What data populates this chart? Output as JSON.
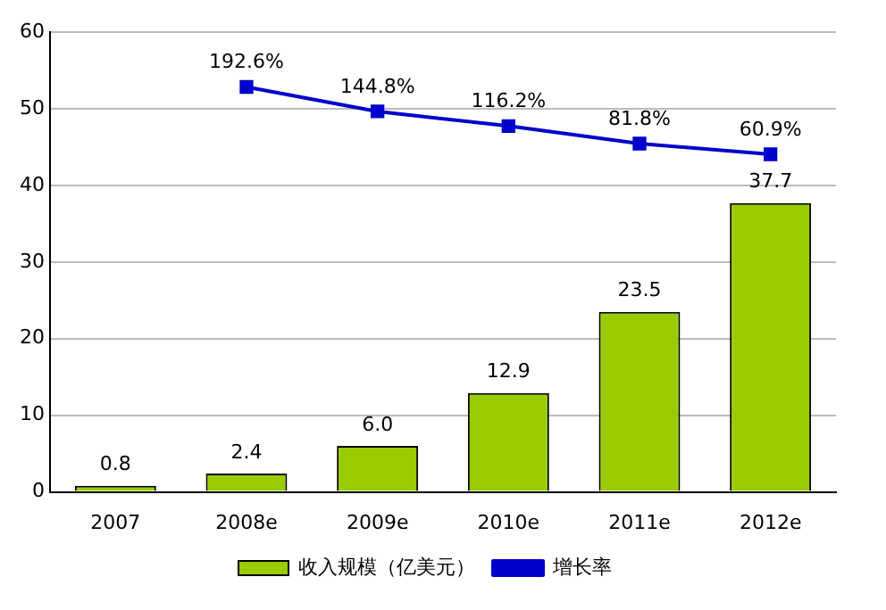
{
  "chart_data": {
    "type": "bar",
    "categories": [
      "2007",
      "2008e",
      "2009e",
      "2010e",
      "2011e",
      "2012e"
    ],
    "series": [
      {
        "name": "收入规模（亿美元）",
        "color": "#99cc00",
        "values": [
          0.8,
          2.4,
          6.0,
          12.9,
          23.5,
          37.7
        ],
        "value_labels": [
          "0.8",
          "2.4",
          "6.0",
          "12.9",
          "23.5",
          "37.7"
        ]
      },
      {
        "name": "增长率",
        "type": "line",
        "axis": "y2",
        "color": "#0000cc",
        "values": [
          null,
          192.6,
          144.8,
          116.2,
          81.8,
          60.9
        ],
        "value_labels": [
          null,
          "192.6%",
          "144.8%",
          "116.2%",
          "81.8%",
          "60.9%"
        ]
      }
    ],
    "ylim": [
      0,
      60
    ],
    "yticks": [
      0,
      10,
      20,
      30,
      40,
      50,
      60
    ],
    "y2lim": [
      -600,
      300
    ],
    "grid": "y",
    "legend": "bottom",
    "marker": "square",
    "line_style": "solid"
  }
}
